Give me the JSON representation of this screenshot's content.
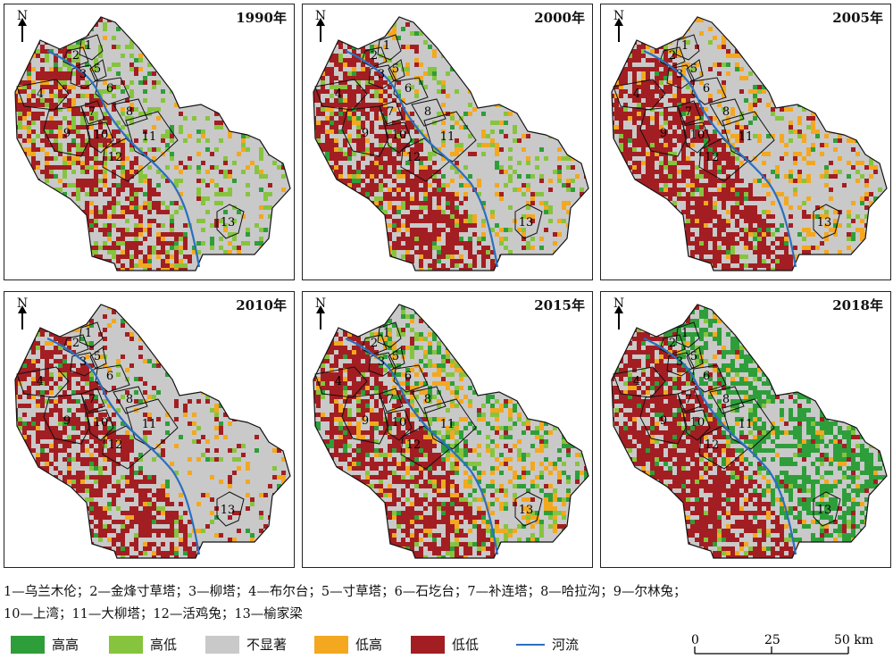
{
  "panels": [
    {
      "year": "1990年",
      "variant": 0
    },
    {
      "year": "2000年",
      "variant": 1
    },
    {
      "year": "2005年",
      "variant": 2
    },
    {
      "year": "2010年",
      "variant": 3
    },
    {
      "year": "2015年",
      "variant": 4
    },
    {
      "year": "2018年",
      "variant": 5
    }
  ],
  "north_label": "N",
  "town_numbers": [
    "1",
    "2",
    "3",
    "4",
    "5",
    "6",
    "7",
    "8",
    "9",
    "10",
    "11",
    "12",
    "13"
  ],
  "caption": {
    "line1": "1—乌兰木伦；2—金烽寸草塔；3—柳塔；4—布尔台；5—寸草塔；6—石圪台；7—补连塔；8—哈拉沟；9—尔林兔；",
    "line2": "10—上湾；11—大柳塔；12—活鸡兔；13—榆家梁"
  },
  "legend": {
    "items": [
      {
        "label": "高高",
        "color": "#2e9e3a"
      },
      {
        "label": "高低",
        "color": "#86c43e"
      },
      {
        "label": "不显著",
        "color": "#c9c9c9"
      },
      {
        "label": "低高",
        "color": "#f3a81f"
      },
      {
        "label": "低低",
        "color": "#a31e22"
      }
    ],
    "river_label": "河流",
    "river_color": "#2a6fc0"
  },
  "scale": {
    "ticks": [
      "0",
      "25",
      "50 km"
    ]
  }
}
